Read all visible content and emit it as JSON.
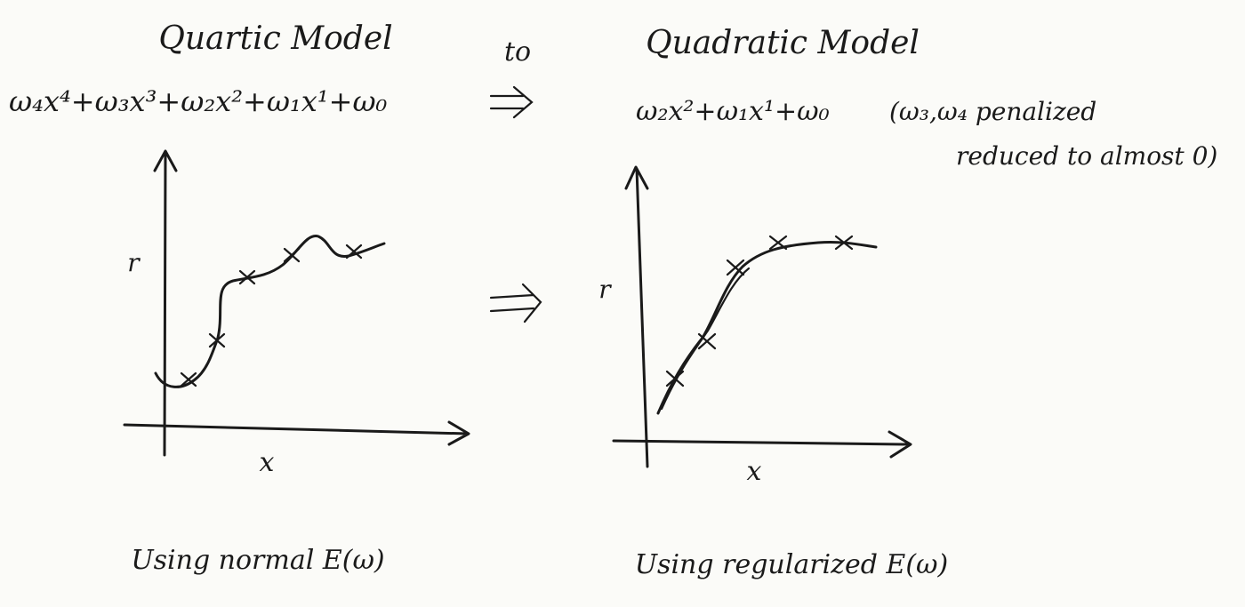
{
  "left": {
    "title": "Quartic Model",
    "formula": "ω₄x⁴+ω₃x³+ω₂x²+ω₁x¹+ω₀",
    "y_label": "r",
    "x_label": "x",
    "caption": "Using normal E(ω)"
  },
  "connector": "to",
  "right": {
    "title": "Quadratic Model",
    "formula": "ω₂x²+ω₁x¹+ω₀",
    "note": [
      "(ω₃,ω₄ penalized",
      "reduced to almost 0)"
    ],
    "y_label": "r",
    "x_label": "x",
    "caption": "Using regularized E(ω)"
  }
}
